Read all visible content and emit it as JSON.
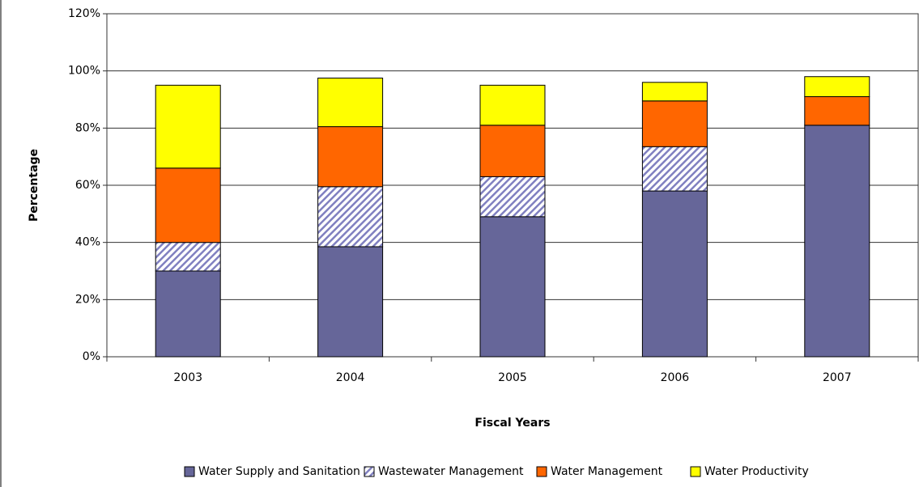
{
  "chart_data": {
    "type": "stacked_bar",
    "x_label": "Fiscal Years",
    "y_label": "Percentage",
    "categories": [
      "2003",
      "2004",
      "2005",
      "2006",
      "2007"
    ],
    "series": [
      {
        "name": "Water Supply and Sanitation",
        "color": "#666699",
        "values": [
          30,
          38.5,
          49,
          58,
          81
        ]
      },
      {
        "name": "Wastewater Management",
        "color": "#8080c0",
        "hatch": true,
        "values": [
          10,
          21,
          14,
          15.5,
          0
        ]
      },
      {
        "name": "Water Management",
        "color": "#ff6600",
        "values": [
          26,
          21,
          18,
          16,
          10
        ]
      },
      {
        "name": "Water Productivity",
        "color": "#ffff00",
        "values": [
          29,
          17,
          14,
          6.5,
          7
        ]
      }
    ],
    "ylim": [
      0,
      120
    ],
    "yticks": [
      {
        "value": 0,
        "label": "0%"
      },
      {
        "value": 20,
        "label": "20%"
      },
      {
        "value": 40,
        "label": "40%"
      },
      {
        "value": 60,
        "label": "60%"
      },
      {
        "value": 80,
        "label": "80%"
      },
      {
        "value": 100,
        "label": "100%"
      },
      {
        "value": 120,
        "label": "120%"
      }
    ],
    "grid": true,
    "legend": "bottom"
  }
}
